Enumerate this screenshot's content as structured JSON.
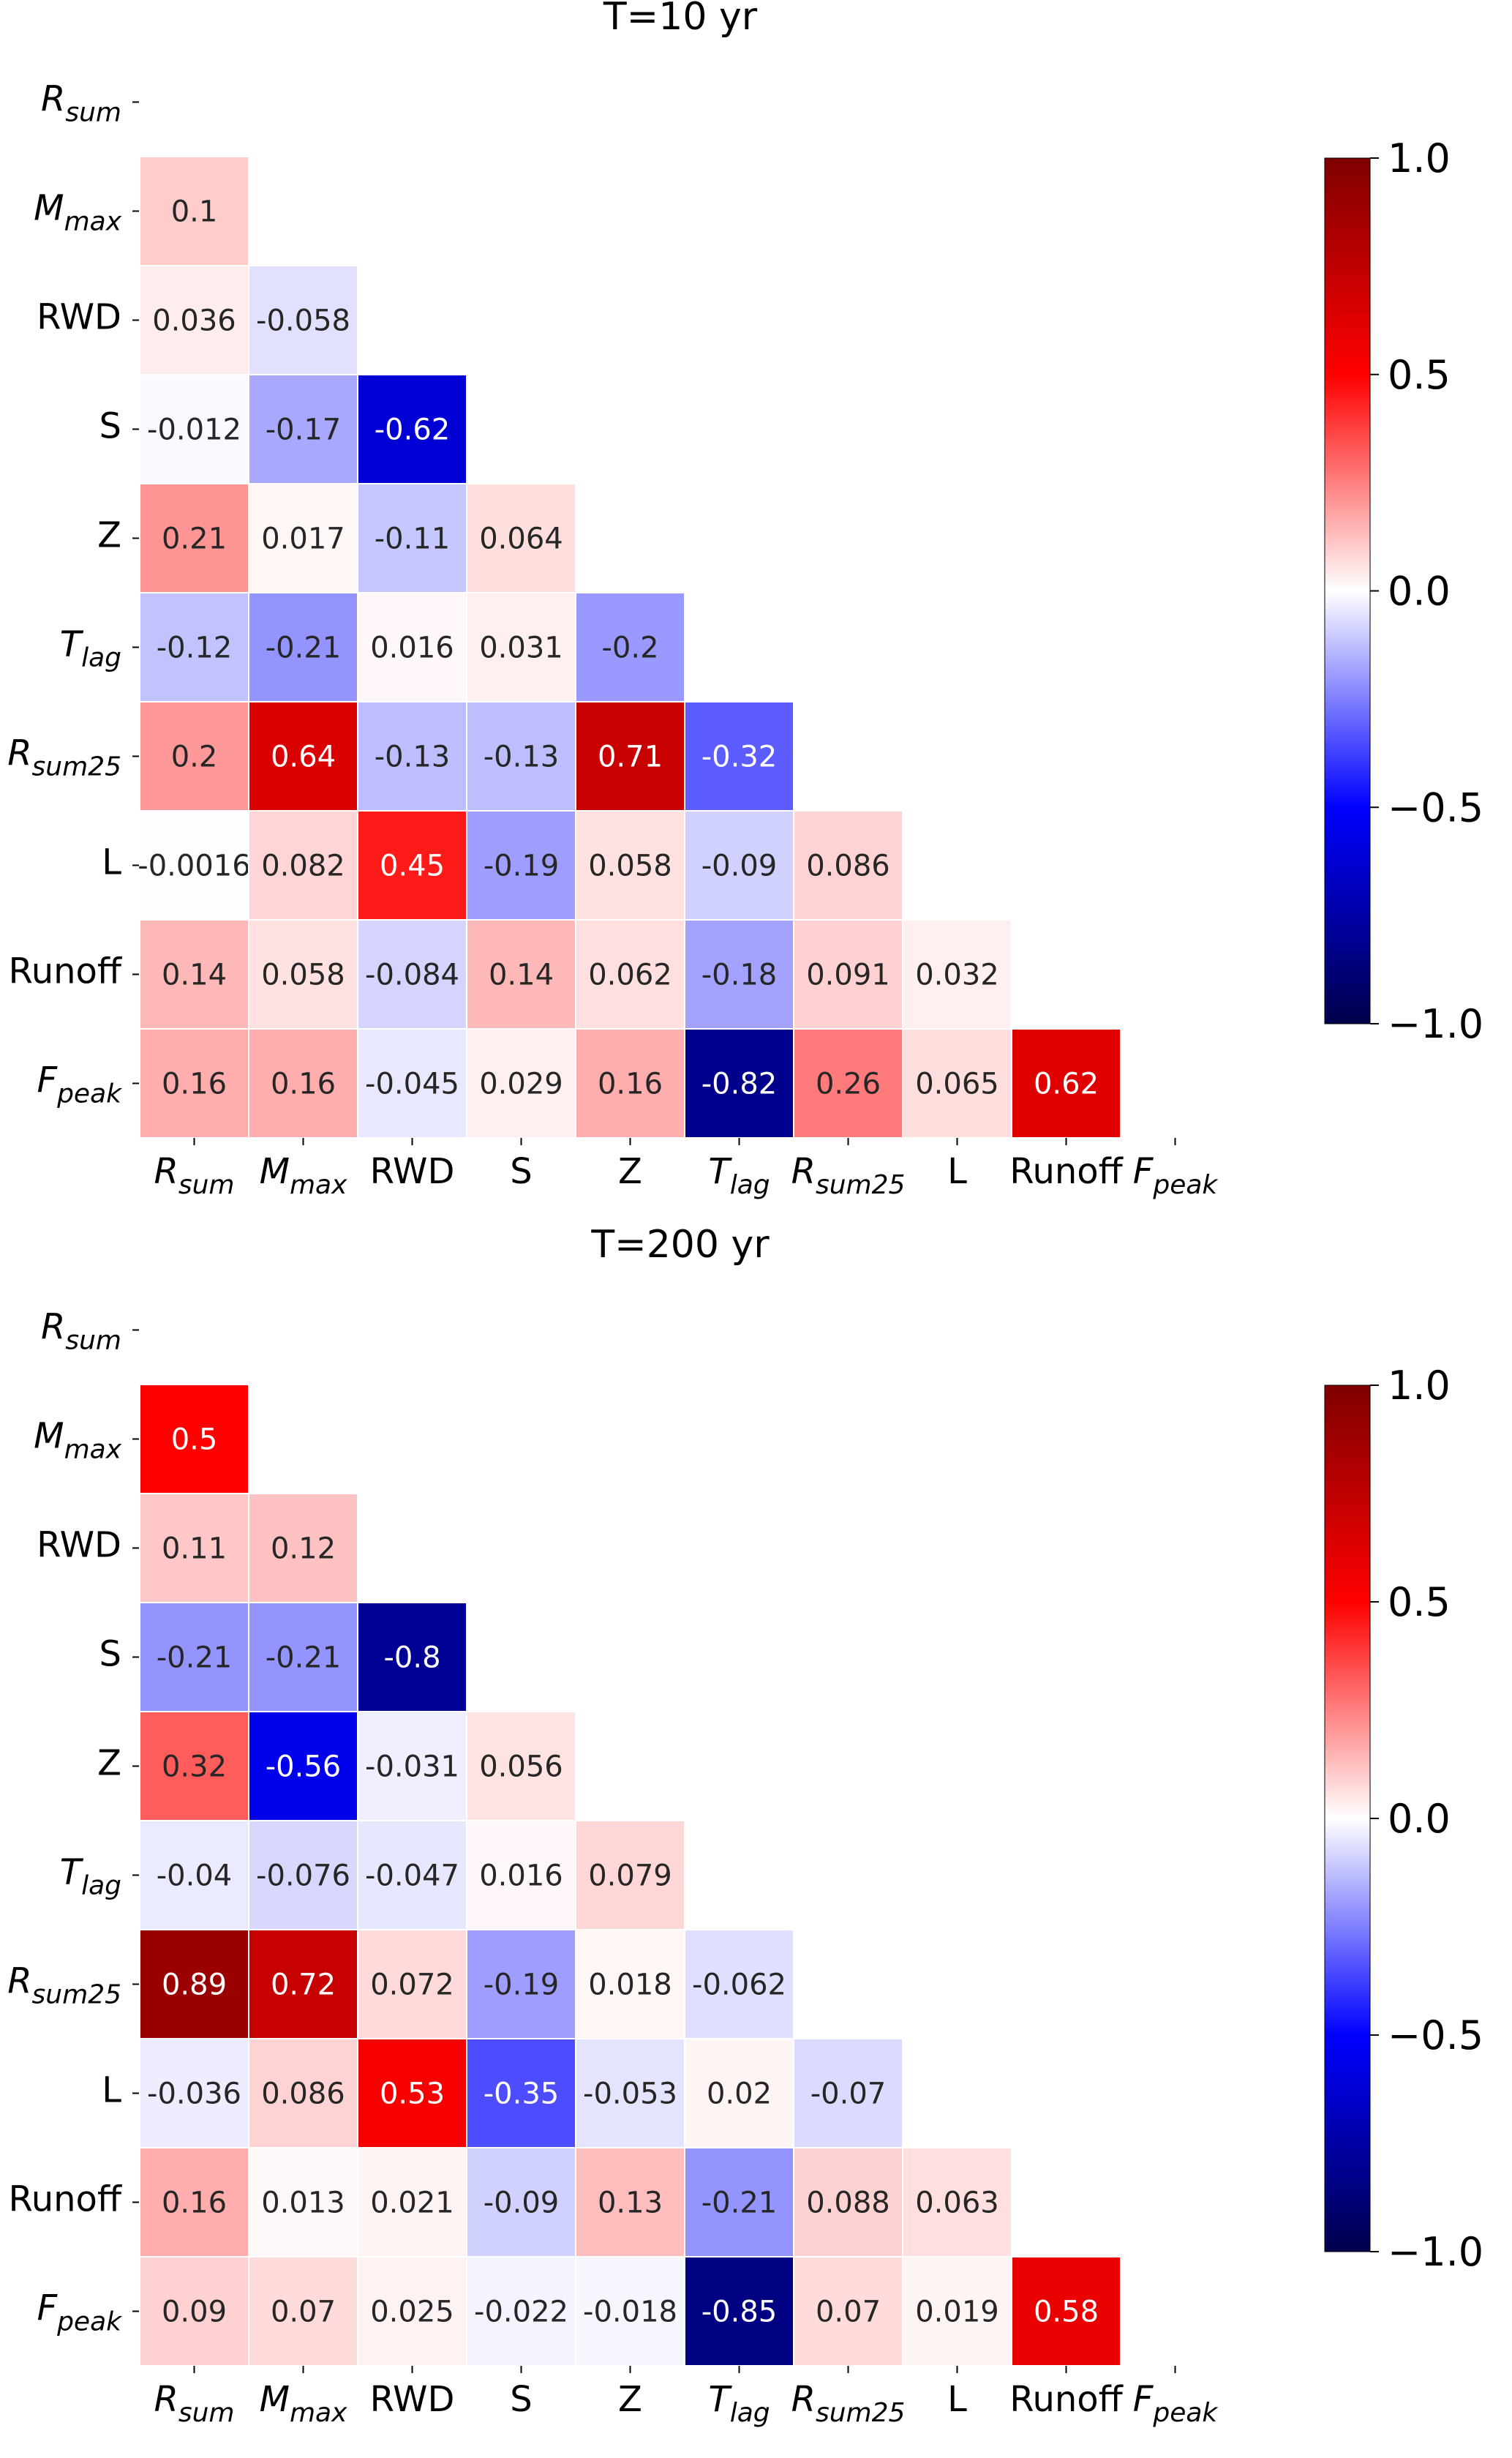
{
  "chart_data": [
    {
      "type": "heatmap",
      "title": "T=10 yr",
      "row_labels": [
        {
          "base": "R",
          "sub": "sum"
        },
        {
          "base": "M",
          "sub": "max"
        },
        {
          "base": "RWD",
          "sub": ""
        },
        {
          "base": "S",
          "sub": ""
        },
        {
          "base": "Z",
          "sub": ""
        },
        {
          "base": "T",
          "sub": "lag"
        },
        {
          "base": "R",
          "sub": "sum25"
        },
        {
          "base": "L",
          "sub": ""
        },
        {
          "base": "Runoff",
          "sub": ""
        },
        {
          "base": "F",
          "sub": "peak"
        }
      ],
      "col_labels": [
        {
          "base": "R",
          "sub": "sum"
        },
        {
          "base": "M",
          "sub": "max"
        },
        {
          "base": "RWD",
          "sub": ""
        },
        {
          "base": "S",
          "sub": ""
        },
        {
          "base": "Z",
          "sub": ""
        },
        {
          "base": "T",
          "sub": "lag"
        },
        {
          "base": "R",
          "sub": "sum25"
        },
        {
          "base": "L",
          "sub": ""
        },
        {
          "base": "Runoff",
          "sub": ""
        },
        {
          "base": "F",
          "sub": "peak"
        }
      ],
      "values": [
        [],
        [
          0.1
        ],
        [
          0.036,
          -0.058
        ],
        [
          -0.012,
          -0.17,
          -0.62
        ],
        [
          0.21,
          0.017,
          -0.11,
          0.064
        ],
        [
          -0.12,
          -0.21,
          0.016,
          0.031,
          -0.2
        ],
        [
          0.2,
          0.64,
          -0.13,
          -0.13,
          0.71,
          -0.32
        ],
        [
          -0.0016,
          0.082,
          0.45,
          -0.19,
          0.058,
          -0.09,
          0.086
        ],
        [
          0.14,
          0.058,
          -0.084,
          0.14,
          0.062,
          -0.18,
          0.091,
          0.032
        ],
        [
          0.16,
          0.16,
          -0.045,
          0.029,
          0.16,
          -0.82,
          0.26,
          0.065,
          0.62
        ]
      ],
      "labels": [
        [],
        [
          "0.1"
        ],
        [
          "0.036",
          "-0.058"
        ],
        [
          "-0.012",
          "-0.17",
          "-0.62"
        ],
        [
          "0.21",
          "0.017",
          "-0.11",
          "0.064"
        ],
        [
          "-0.12",
          "-0.21",
          "0.016",
          "0.031",
          "-0.2"
        ],
        [
          "0.2",
          "0.64",
          "-0.13",
          "-0.13",
          "0.71",
          "-0.32"
        ],
        [
          "-0.0016",
          "0.082",
          "0.45",
          "-0.19",
          "0.058",
          "-0.09",
          "0.086"
        ],
        [
          "0.14",
          "0.058",
          "-0.084",
          "0.14",
          "0.062",
          "-0.18",
          "0.091",
          "0.032"
        ],
        [
          "0.16",
          "0.16",
          "-0.045",
          "0.029",
          "0.16",
          "-0.82",
          "0.26",
          "0.065",
          "0.62"
        ]
      ],
      "colorbar": {
        "min": -1.0,
        "max": 1.0,
        "ticks": [
          1.0,
          0.5,
          0.0,
          -0.5,
          -1.0
        ],
        "tick_labels": [
          "1.0",
          "0.5",
          "0.0",
          "−0.5",
          "−1.0"
        ]
      }
    },
    {
      "type": "heatmap",
      "title": "T=200 yr",
      "row_labels": [
        {
          "base": "R",
          "sub": "sum"
        },
        {
          "base": "M",
          "sub": "max"
        },
        {
          "base": "RWD",
          "sub": ""
        },
        {
          "base": "S",
          "sub": ""
        },
        {
          "base": "Z",
          "sub": ""
        },
        {
          "base": "T",
          "sub": "lag"
        },
        {
          "base": "R",
          "sub": "sum25"
        },
        {
          "base": "L",
          "sub": ""
        },
        {
          "base": "Runoff",
          "sub": ""
        },
        {
          "base": "F",
          "sub": "peak"
        }
      ],
      "col_labels": [
        {
          "base": "R",
          "sub": "sum"
        },
        {
          "base": "M",
          "sub": "max"
        },
        {
          "base": "RWD",
          "sub": ""
        },
        {
          "base": "S",
          "sub": ""
        },
        {
          "base": "Z",
          "sub": ""
        },
        {
          "base": "T",
          "sub": "lag"
        },
        {
          "base": "R",
          "sub": "sum25"
        },
        {
          "base": "L",
          "sub": ""
        },
        {
          "base": "Runoff",
          "sub": ""
        },
        {
          "base": "F",
          "sub": "peak"
        }
      ],
      "values": [
        [],
        [
          0.5
        ],
        [
          0.11,
          0.12
        ],
        [
          -0.21,
          -0.21,
          -0.8
        ],
        [
          0.32,
          -0.56,
          -0.031,
          0.056
        ],
        [
          -0.04,
          -0.076,
          -0.047,
          0.016,
          0.079
        ],
        [
          0.89,
          0.72,
          0.072,
          -0.19,
          0.018,
          -0.062
        ],
        [
          -0.036,
          0.086,
          0.53,
          -0.35,
          -0.053,
          0.02,
          -0.07
        ],
        [
          0.16,
          0.013,
          0.021,
          -0.09,
          0.13,
          -0.21,
          0.088,
          0.063
        ],
        [
          0.09,
          0.07,
          0.025,
          -0.022,
          -0.018,
          -0.85,
          0.07,
          0.019,
          0.58
        ]
      ],
      "labels": [
        [],
        [
          "0.5"
        ],
        [
          "0.11",
          "0.12"
        ],
        [
          "-0.21",
          "-0.21",
          "-0.8"
        ],
        [
          "0.32",
          "-0.56",
          "-0.031",
          "0.056"
        ],
        [
          "-0.04",
          "-0.076",
          "-0.047",
          "0.016",
          "0.079"
        ],
        [
          "0.89",
          "0.72",
          "0.072",
          "-0.19",
          "0.018",
          "-0.062"
        ],
        [
          "-0.036",
          "0.086",
          "0.53",
          "-0.35",
          "-0.053",
          "0.02",
          "-0.07"
        ],
        [
          "0.16",
          "0.013",
          "0.021",
          "-0.09",
          "0.13",
          "-0.21",
          "0.088",
          "0.063"
        ],
        [
          "0.09",
          "0.07",
          "0.025",
          "-0.022",
          "-0.018",
          "-0.85",
          "0.07",
          "0.019",
          "0.58"
        ]
      ],
      "colorbar": {
        "min": -1.0,
        "max": 1.0,
        "ticks": [
          1.0,
          0.5,
          0.0,
          -0.5,
          -1.0
        ],
        "tick_labels": [
          "1.0",
          "0.5",
          "0.0",
          "−0.5",
          "−1.0"
        ]
      }
    }
  ],
  "colors": {
    "cmap": [
      "#00004c",
      "#0000ff",
      "#ffffff",
      "#ff0000",
      "#7f0000"
    ],
    "cell_border": "#ffffff",
    "axis_text": "#000000"
  }
}
